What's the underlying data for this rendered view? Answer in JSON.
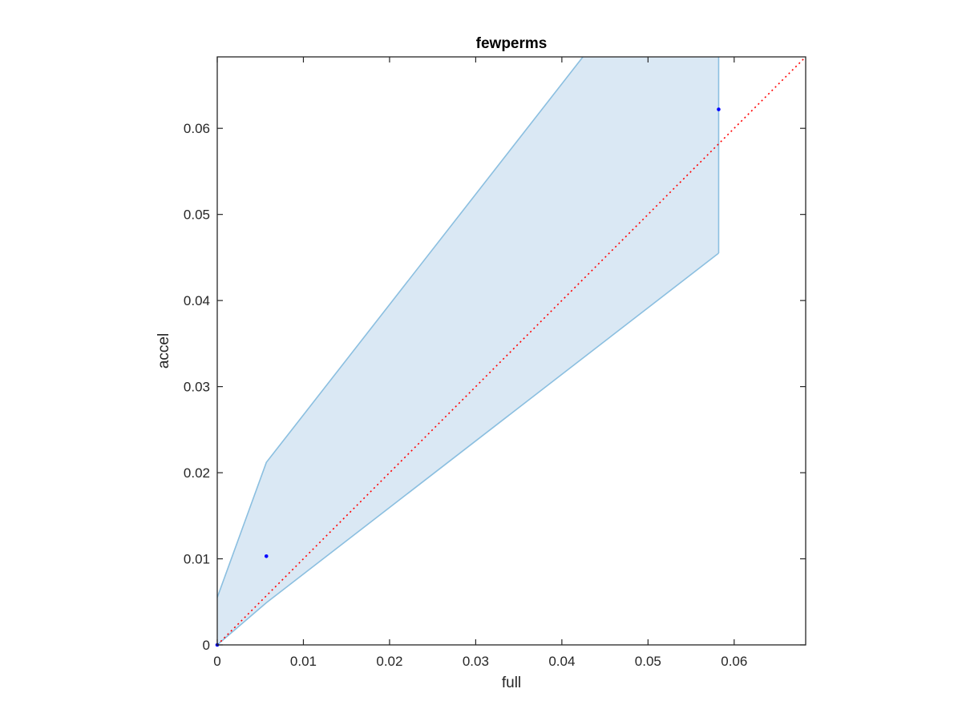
{
  "chart_data": {
    "type": "scatter",
    "title": "fewperms",
    "xlabel": "full",
    "ylabel": "accel",
    "xlim": [
      0,
      0.0683
    ],
    "ylim": [
      0,
      0.0683
    ],
    "xticks": [
      0,
      0.01,
      0.02,
      0.03,
      0.04,
      0.05,
      0.06
    ],
    "yticks": [
      0,
      0.01,
      0.02,
      0.03,
      0.04,
      0.05,
      0.06
    ],
    "xtick_labels": [
      "0",
      "0.01",
      "0.02",
      "0.03",
      "0.04",
      "0.05",
      "0.06"
    ],
    "ytick_labels": [
      "0",
      "0.01",
      "0.02",
      "0.03",
      "0.04",
      "0.05",
      "0.06"
    ],
    "grid": false,
    "series": [
      {
        "type": "scatter",
        "x": [
          0,
          0.0057,
          0.0582
        ],
        "y": [
          0,
          0.0103,
          0.0622
        ],
        "color": "#0000ff"
      },
      {
        "type": "line",
        "style": "dotted",
        "x": [
          0,
          0.0683
        ],
        "y": [
          0,
          0.0683
        ],
        "color": "#ff0000"
      },
      {
        "type": "band",
        "x": [
          0,
          0.0057,
          0.0582
        ],
        "upper": [
          0.0055,
          0.0212,
          0.0885
        ],
        "lower": [
          0,
          0.0049,
          0.0455
        ],
        "fill_color": "#dae8f4",
        "line_color": "#8bbfe0"
      }
    ]
  }
}
